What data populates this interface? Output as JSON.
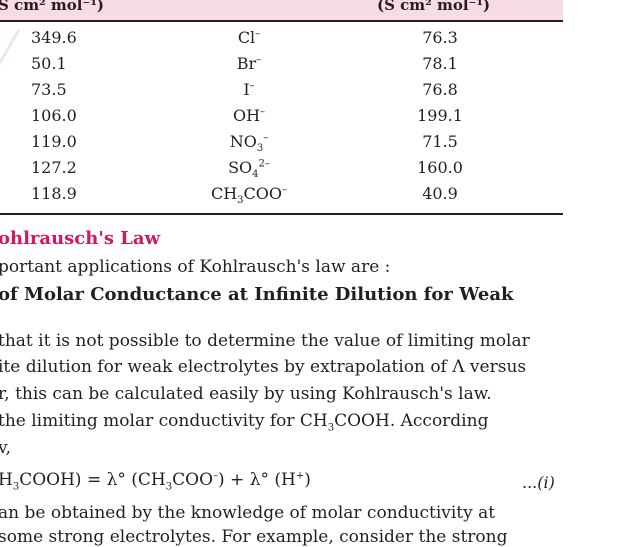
{
  "table": {
    "header_left": "S cm² mol⁻¹)",
    "header_right": "(S cm² mol⁻¹)",
    "rows": [
      {
        "left": "349.6",
        "ion": "Cl",
        "ion_sup": "–",
        "ion_sub": "",
        "right": "76.3"
      },
      {
        "left": "50.1",
        "ion": "Br",
        "ion_sup": "–",
        "ion_sub": "",
        "right": "78.1"
      },
      {
        "left": "73.5",
        "ion": "I",
        "ion_sup": "–",
        "ion_sub": "",
        "right": "76.8"
      },
      {
        "left": "106.0",
        "ion": "OH",
        "ion_sup": "–",
        "ion_sub": "",
        "right": "199.1"
      },
      {
        "left": "119.0",
        "ion": "NO",
        "ion_sub": "3",
        "ion_sup": "–",
        "right": "71.5"
      },
      {
        "left": "127.2",
        "ion": "SO",
        "ion_sub": "4",
        "ion_sup": "2–",
        "right": "160.0"
      },
      {
        "left": "118.9",
        "ion": "CH",
        "ion_sub": "3",
        "ion_tail": "COO",
        "ion_sup": "–",
        "right": "40.9"
      }
    ]
  },
  "section_title": "ohlrausch's Law",
  "lines": {
    "l1": "portant applications of Kohlrausch's law are :",
    "subhead": " of Molar Conductance at Infinite Dilution for Weak",
    "p1": "that it is not possible to determine the value of limiting molar",
    "p2": "ite dilution for weak electrolytes by extrapolation of Λ versus",
    "p3": "r, this can be calculated easily by using Kohlrausch's law.",
    "p4a": " the limiting molar conductivity for CH",
    "p4b": "COOH. According",
    "p5": "v,",
    "eq_a": "H",
    "eq_b": "COOH)  = λ° (CH",
    "eq_c": "COO",
    "eq_d": ") + λ° (H",
    "eq_e": ")",
    "eq_num": "...(i)",
    "p6": "an be obtained by the knowledge of molar conductivity at",
    "p7": "some strong electrolytes. For example, consider the strong"
  }
}
